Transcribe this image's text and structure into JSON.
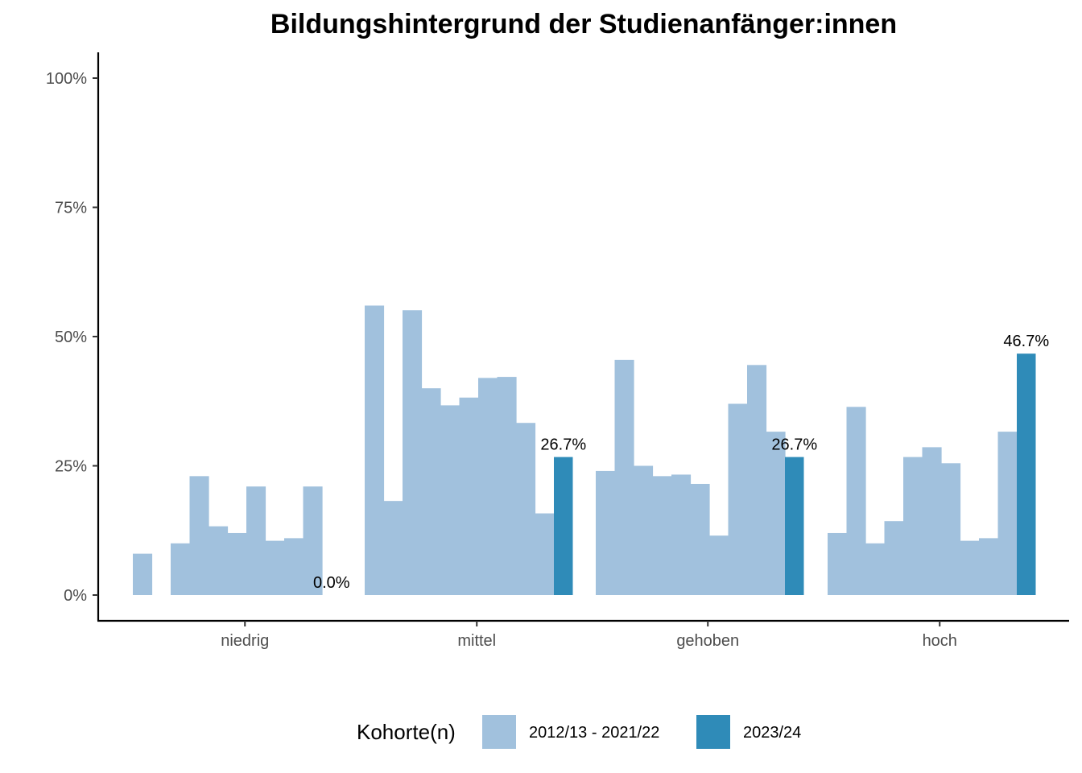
{
  "chart_data": {
    "type": "bar",
    "title": "Bildungshintergrund der Studienanfänger:innen",
    "xlabel": "",
    "ylabel": "",
    "ylim": [
      0,
      1.05
    ],
    "y_ticks": [
      {
        "value": 0,
        "label": "0%"
      },
      {
        "value": 0.25,
        "label": "25%"
      },
      {
        "value": 0.5,
        "label": "50%"
      },
      {
        "value": 0.75,
        "label": "75%"
      },
      {
        "value": 1.0,
        "label": "100%"
      }
    ],
    "categories": [
      "niedrig",
      "mittel",
      "gehoben",
      "hoch"
    ],
    "series": [
      {
        "name": "2012/13 - 2021/22",
        "color": "#a1c1dd",
        "values": [
          [
            0.08,
            0.0,
            0.1,
            0.23,
            0.133,
            0.12,
            0.21,
            0.105,
            0.11,
            0.21
          ],
          [
            0.56,
            0.182,
            0.551,
            0.4,
            0.367,
            0.382,
            0.42,
            0.422,
            0.333,
            0.158
          ],
          [
            0.24,
            0.455,
            0.25,
            0.23,
            0.233,
            0.215,
            0.115,
            0.37,
            0.445,
            0.316
          ],
          [
            0.12,
            0.364,
            0.1,
            0.143,
            0.267,
            0.286,
            0.255,
            0.105,
            0.11,
            0.316
          ]
        ]
      },
      {
        "name": "2023/24",
        "color": "#2f8bb8",
        "values": [
          0.0,
          0.267,
          0.267,
          0.467
        ],
        "labels": [
          "0.0%",
          "26.7%",
          "26.7%",
          "46.7%"
        ]
      }
    ],
    "legend": {
      "title": "Kohorte(n)",
      "position": "bottom",
      "entries": [
        {
          "label": "2012/13 - 2021/22",
          "color": "#a1c1dd"
        },
        {
          "label": "2023/24",
          "color": "#2f8bb8"
        }
      ]
    }
  }
}
